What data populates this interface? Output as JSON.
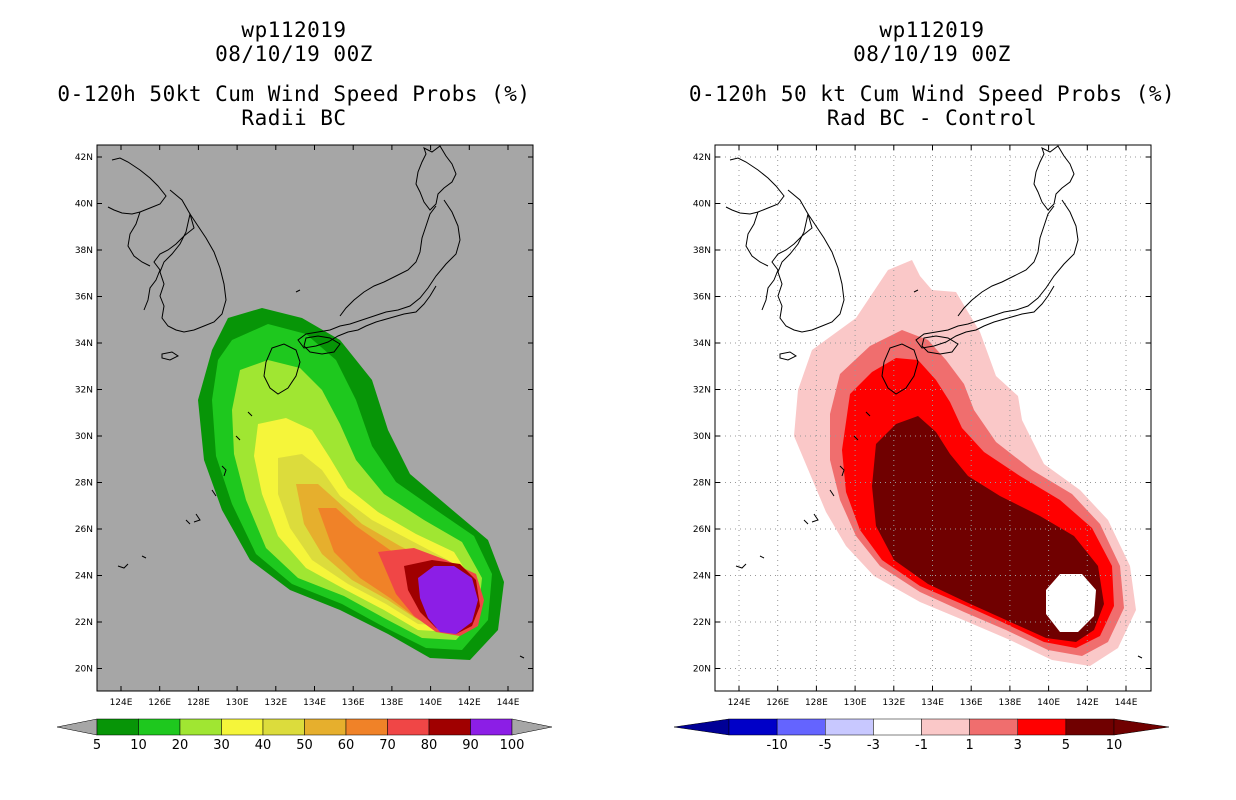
{
  "left_panel": {
    "title_line1": "wp112019",
    "title_line2": "08/10/19 00Z",
    "title_line3": "0-120h 50kt Cum Wind Speed Probs (%)",
    "title_line4": "Radii BC",
    "colorbar_labels": [
      "5",
      "10",
      "20",
      "30",
      "40",
      "50",
      "60",
      "70",
      "80",
      "90",
      "100"
    ],
    "colors": {
      "background": "#a6a6a6",
      "levels": [
        "#079507",
        "#1ec81e",
        "#a0e632",
        "#f5f53a",
        "#dcdc3c",
        "#e6af2d",
        "#f08228",
        "#f04646",
        "#a00000",
        "#8c1ee6"
      ],
      "ends": "#a6a6a6"
    }
  },
  "right_panel": {
    "title_line1": "wp112019",
    "title_line2": "08/10/19 00Z",
    "title_line3": "0-120h 50 kt Cum Wind Speed Probs (%)",
    "title_line4": "Rad BC - Control",
    "colorbar_labels": [
      "-10",
      "-5",
      "-3",
      "-1",
      "1",
      "3",
      "5",
      "10"
    ],
    "colors": {
      "background": "#ffffff",
      "levels": [
        "#0000c8",
        "#6464ff",
        "#c8c8ff",
        "#ffffff",
        "#fac8c8",
        "#f06e6e",
        "#ff0000",
        "#700000"
      ],
      "low_end": "#000096",
      "high_end": "#700000"
    }
  },
  "axes": {
    "lat_labels": [
      "42N",
      "40N",
      "38N",
      "36N",
      "34N",
      "32N",
      "30N",
      "28N",
      "26N",
      "24N",
      "22N",
      "20N"
    ],
    "lon_labels": [
      "124E",
      "126E",
      "128E",
      "130E",
      "132E",
      "134E",
      "136E",
      "138E",
      "140E",
      "142E",
      "144E"
    ]
  }
}
